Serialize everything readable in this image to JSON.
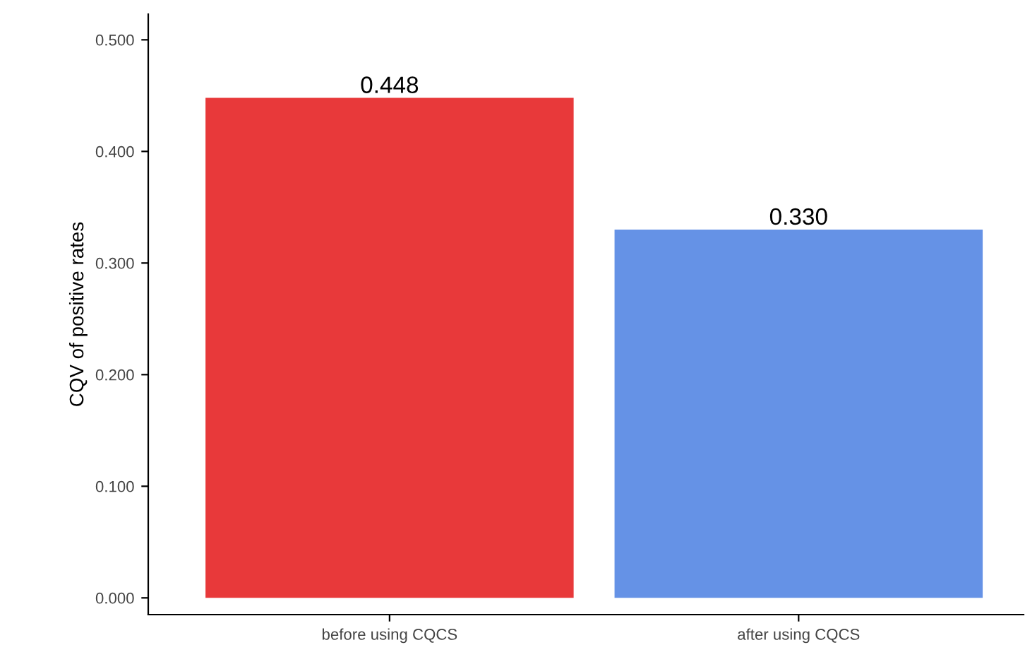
{
  "chart_data": {
    "type": "bar",
    "ylabel": "CQV of positive rates",
    "categories": [
      "before using CQCS",
      "after using CQCS"
    ],
    "values": [
      0.448,
      0.33
    ],
    "colors": [
      "#e8393a",
      "#6592e6"
    ],
    "ylim": [
      -0.015,
      0.523
    ],
    "yticks": [
      {
        "value": 0,
        "label": "0.000"
      },
      {
        "value": 0.1,
        "label": "0.100"
      },
      {
        "value": 0.2,
        "label": "0.200"
      },
      {
        "value": 0.3,
        "label": "0.300"
      },
      {
        "value": 0.4,
        "label": "0.400"
      },
      {
        "value": 0.5,
        "label": "0.500"
      }
    ],
    "value_labels": [
      "0.448",
      "0.330"
    ],
    "grid": false,
    "legend": false
  }
}
